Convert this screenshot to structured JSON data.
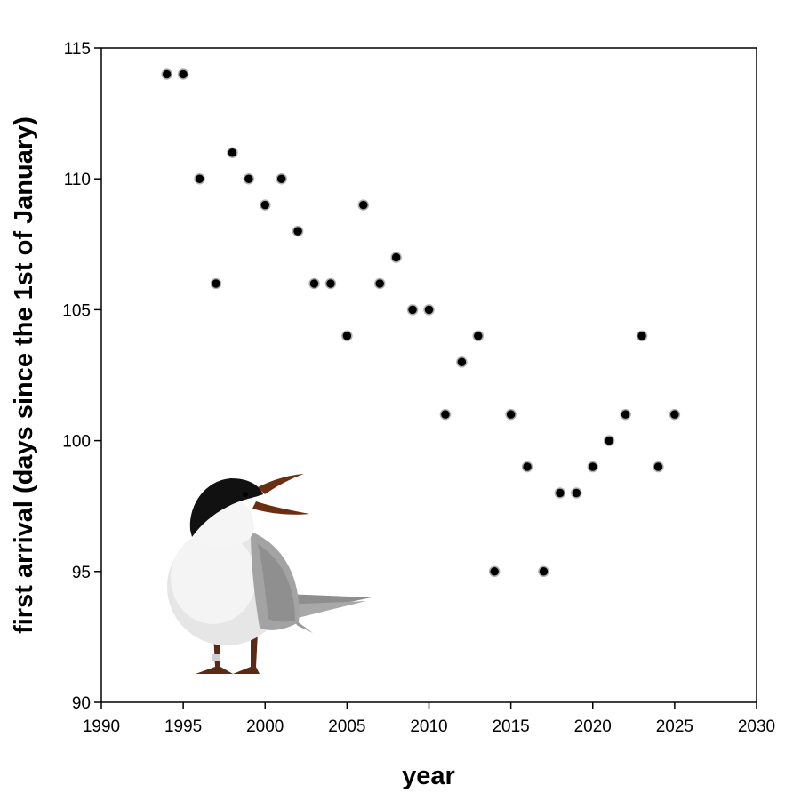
{
  "chart_data": {
    "type": "scatter",
    "title": "",
    "xlabel": "year",
    "ylabel": "first arrival (days since the 1st of January)",
    "xlim": [
      1990,
      2030
    ],
    "ylim": [
      90,
      115
    ],
    "xticks": [
      1990,
      1995,
      2000,
      2005,
      2010,
      2015,
      2020,
      2025,
      2030
    ],
    "yticks": [
      90,
      95,
      100,
      105,
      110,
      115
    ],
    "grid": false,
    "annotation": "illustration of a tern in the lower-left corner",
    "series": [
      {
        "name": "first arrival",
        "x": [
          1994,
          1995,
          1996,
          1997,
          1998,
          1999,
          2000,
          2001,
          2002,
          2003,
          2004,
          2005,
          2006,
          2007,
          2008,
          2009,
          2010,
          2011,
          2012,
          2013,
          2014,
          2015,
          2016,
          2017,
          2018,
          2019,
          2020,
          2021,
          2022,
          2023,
          2024,
          2025
        ],
        "y": [
          114,
          114,
          110,
          106,
          111,
          110,
          109,
          110,
          108,
          106,
          106,
          104,
          109,
          106,
          107,
          105,
          105,
          101,
          103,
          104,
          95,
          101,
          99,
          95,
          98,
          98,
          99,
          100,
          101,
          104,
          99,
          101
        ]
      }
    ]
  },
  "colors": {
    "marker_fill": "#000000",
    "marker_edge": "#b0b0b0",
    "axis": "#000000"
  }
}
